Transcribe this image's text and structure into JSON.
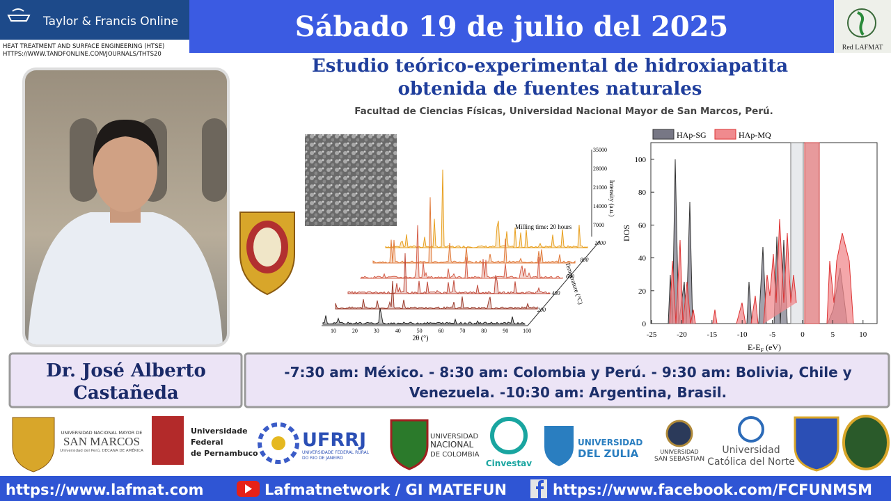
{
  "header": {
    "brand": "Taylor & Francis Online",
    "journal": "HEAT TREATMENT AND SURFACE ENGINEERING (HTSE)",
    "journal_url": "HTTPS://WWW.TANDFONLINE.COM/JOURNALS/THTS20",
    "date": "Sábado 19 de julio del 2025",
    "network": "Red LAFMAT"
  },
  "talk": {
    "title_lines": [
      "Estudio teórico-experimental de hidroxiapatita",
      "obtenida de fuentes naturales"
    ],
    "affiliation": "Facultad de Ciencias Físicas, Universidad Nacional Mayor de San Marcos, Perú."
  },
  "xrd": {
    "x_label": "2θ (°)",
    "x_ticks": [
      "10",
      "20",
      "30",
      "40",
      "50",
      "60",
      "70",
      "80",
      "90",
      "100"
    ],
    "intensity_label": "Intensity (a.u.)",
    "intensity_ticks": [
      "35000",
      "28000",
      "21000",
      "14000",
      "7000"
    ],
    "temperature_label": "Temperature (°C)",
    "temperature_ticks": [
      "1000",
      "800",
      "600",
      "400",
      "200"
    ],
    "note": "Milling time: 20 hours"
  },
  "dos": {
    "legend": [
      "HAp-SG",
      "HAp-MQ"
    ],
    "y_label": "DOS",
    "y_ticks": [
      "0",
      "20",
      "40",
      "60",
      "80",
      "100"
    ],
    "x_ticks": [
      "-25",
      "-20",
      "-15",
      "-10",
      "-5",
      "0",
      "5",
      "10"
    ],
    "x_label": "E-E",
    "x_label_sub": "F",
    "x_label_unit": " (eV)"
  },
  "speaker": {
    "name_lines": [
      "Dr. José Alberto",
      "Castañeda"
    ]
  },
  "schedule": {
    "lines": [
      "-7:30 am: México. - 8:30 am: Colombia y Perú. - 9:30 am: Bolivia, Chile y",
      "Venezuela. -10:30 am: Argentina, Brasil."
    ]
  },
  "logos": {
    "unmsm": [
      "UNIVERSIDAD NACIONAL MAYOR DE",
      "SAN MARCOS",
      "Universidad del Perú, DECANA DE AMÉRICA"
    ],
    "ufpe": [
      "Universidade",
      "Federal",
      "de Pernambuco"
    ],
    "ufrrj": [
      "UFRRJ",
      "UNIVERSIDADE FEDERAL RURAL",
      "DO RIO DE JANEIRO"
    ],
    "unal": [
      "UNIVERSIDAD",
      "NACIONAL",
      "DE COLOMBIA"
    ],
    "cinvestav": "Cinvestav",
    "luz": [
      "UNIVERSIDAD",
      "DEL ZULIA"
    ],
    "uss": [
      "UNIVERSIDAD",
      "SAN SEBASTIAN"
    ],
    "ucn": [
      "Universidad",
      "Católica del Norte"
    ]
  },
  "footer": {
    "website": "https://www.lafmat.com",
    "youtube": "Lafmatnetwork / GI MATEFUN",
    "facebook": "https://www.facebook.com/FCFUNMSM"
  }
}
